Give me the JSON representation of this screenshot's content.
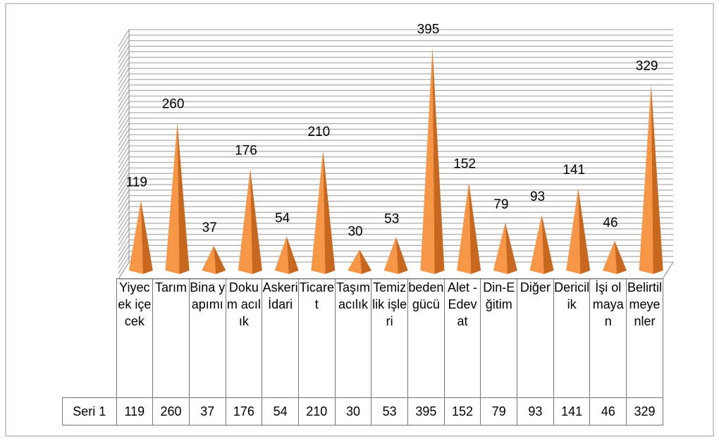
{
  "chart_data": {
    "type": "cone",
    "categories": [
      "Yiyecek içecek",
      "Tarım",
      "Bina yapımı",
      "Dokum acılık",
      "Askeri İdari",
      "Ticaret",
      "Taşımacılık",
      "Temizlik işleri",
      "beden gücü",
      "Alet - Edevat",
      "Din-Eğitim",
      "Diğer",
      "Dericilik",
      "İşi olmayan",
      "Belirtilmeyenler"
    ],
    "series": [
      {
        "name": "Seri 1",
        "color": "#f79646",
        "values": [
          119,
          260,
          37,
          176,
          54,
          210,
          30,
          53,
          395,
          152,
          79,
          93,
          141,
          46,
          329
        ]
      }
    ],
    "ylim": [
      0,
      420
    ],
    "yticks": [
      0,
      10,
      20,
      30,
      40,
      50,
      60,
      70,
      80,
      90,
      100,
      110,
      120,
      130,
      140,
      150,
      160,
      170,
      180,
      190,
      200,
      210,
      220,
      230,
      240,
      250,
      260,
      270,
      280,
      290,
      300,
      310,
      320,
      330,
      340,
      350,
      360,
      370,
      380,
      390,
      400,
      410,
      420
    ],
    "grid": true
  }
}
